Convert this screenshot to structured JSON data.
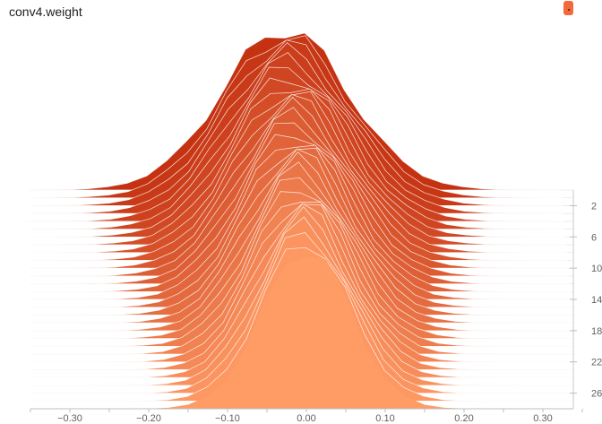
{
  "header": {
    "title": "conv4.weight"
  },
  "icons": {
    "corner": "color-swatch-icon"
  },
  "colors": {
    "front": "#ff9c66",
    "back": "#c53212",
    "edge": "#ffffff",
    "axis": "#bdbdbd"
  },
  "chart_data": {
    "type": "area",
    "title": "conv4.weight",
    "subtitle": "",
    "xlabel": "",
    "ylabel": "",
    "layout": "ridgeline histogram (overlapping distributions per step)",
    "x_ticks": [
      "−0.30",
      "−0.20",
      "−0.10",
      "0.00",
      "0.10",
      "0.20",
      "0.30"
    ],
    "x_tick_values": [
      -0.3,
      -0.2,
      -0.1,
      0.0,
      0.1,
      0.2,
      0.3
    ],
    "y_ticks": [
      "2",
      "6",
      "10",
      "14",
      "18",
      "22",
      "26"
    ],
    "y_tick_values": [
      2,
      6,
      10,
      14,
      18,
      22,
      26
    ],
    "xlim": [
      -0.35,
      0.35
    ],
    "steps": [
      0,
      28
    ],
    "series_count": 29,
    "distribution": "approximately gaussian, centered at 0.00",
    "spread_front_step": 0.055,
    "spread_back_step": 0.08,
    "grid": false,
    "legend": "none"
  }
}
